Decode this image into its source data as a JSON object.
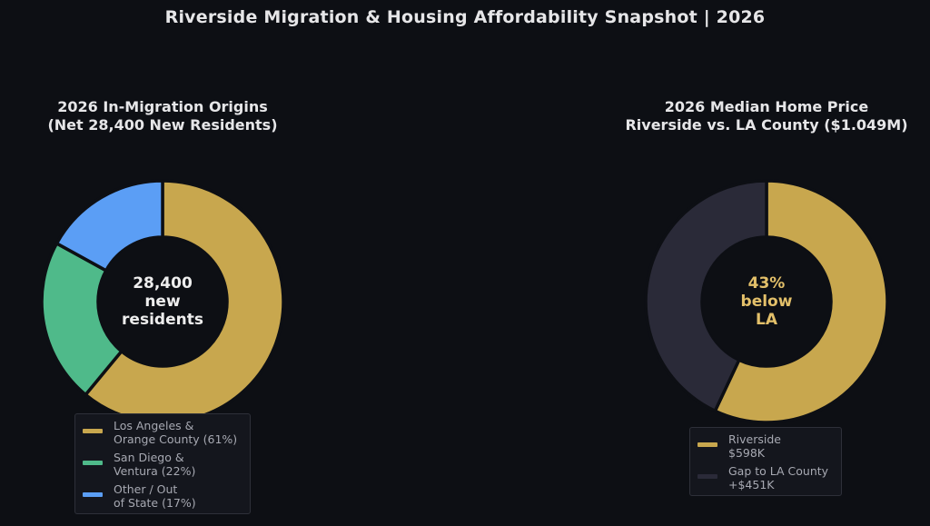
{
  "title": "Riverside Migration & Housing Affordability Snapshot  |  2026",
  "chart_data": [
    {
      "type": "pie",
      "donut": true,
      "title_lines": [
        "2026 In-Migration Origins",
        "(Net 28,400 New Residents)"
      ],
      "center_lines": [
        "28,400",
        "new",
        "residents"
      ],
      "center_color": "#eeeeee",
      "categories": [
        "Los Angeles & Orange County",
        "San Diego & Ventura",
        "Other / Out of State"
      ],
      "values": [
        61,
        22,
        17
      ],
      "colors": [
        "#c8a74e",
        "#4fba8a",
        "#5b9ef5"
      ],
      "legend": {
        "placement": "bottom",
        "entries": [
          "Los Angeles &\nOrange County (61%)",
          "San Diego &\nVentura (22%)",
          "Other / Out\nof State (17%)"
        ]
      }
    },
    {
      "type": "pie",
      "donut": true,
      "title_lines": [
        "2026 Median Home Price",
        "Riverside vs. LA County ($1.049M)"
      ],
      "center_lines": [
        "43%",
        "below",
        "LA"
      ],
      "center_color": "#e3c06a",
      "categories": [
        "Riverside",
        "Gap to LA County"
      ],
      "values": [
        598,
        451
      ],
      "units": "$K",
      "colors": [
        "#c8a74e",
        "#2a2a38"
      ],
      "legend": {
        "placement": "bottom",
        "entries": [
          "Riverside\n$598K",
          "Gap to LA County\n+$451K"
        ]
      }
    }
  ]
}
